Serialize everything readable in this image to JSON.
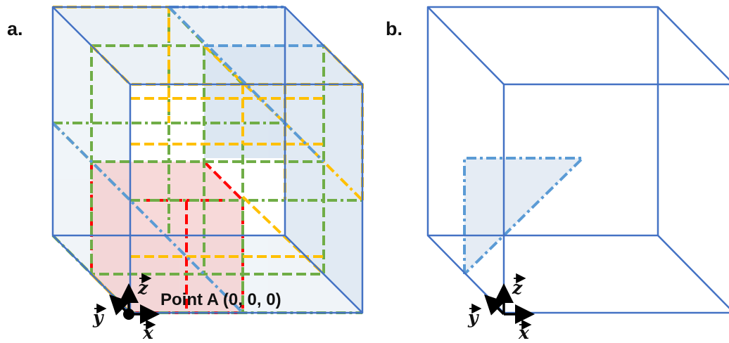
{
  "panels": {
    "a": {
      "label": "a."
    },
    "b": {
      "label": "b."
    }
  },
  "axes": {
    "x": "x",
    "y": "y",
    "z": "z"
  },
  "point": {
    "label": "Point A (0, 0, 0)"
  },
  "colors": {
    "cube_edge": "#4472C4",
    "dash_blue": "#5B9BD5",
    "yellow": "#FFC000",
    "green": "#70AD47",
    "red": "#FF0000",
    "face_fill": "#DCE6F0",
    "red_fill": "#F4CCCC",
    "arrow": "#000000"
  }
}
